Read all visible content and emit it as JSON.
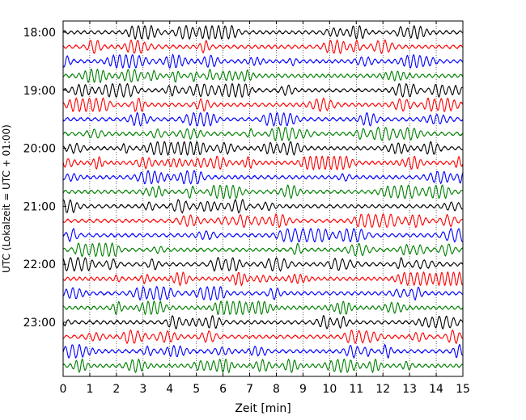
{
  "chart_data": {
    "type": "line",
    "subtype": "helicorder seismogram",
    "xlabel": "Zeit  [min]",
    "ylabel": "UTC (Lokalzeit = UTC + 01:00)",
    "x_ticks": [
      0,
      1,
      2,
      3,
      4,
      5,
      6,
      7,
      8,
      9,
      10,
      11,
      12,
      13,
      14,
      15
    ],
    "xlim": [
      0,
      15
    ],
    "x_gridlines": "dotted at every minute",
    "y_ticks": [
      "18:00",
      "19:00",
      "20:00",
      "21:00",
      "22:00",
      "23:00"
    ],
    "trace_minutes": 15,
    "traces_per_hour": 4,
    "trace_colors": [
      "#000000",
      "#ff0000",
      "#0000ff",
      "#008000"
    ],
    "traces": [
      {
        "start": "18:00",
        "color": "#000000"
      },
      {
        "start": "18:15",
        "color": "#ff0000"
      },
      {
        "start": "18:30",
        "color": "#0000ff"
      },
      {
        "start": "18:45",
        "color": "#008000"
      },
      {
        "start": "19:00",
        "color": "#000000"
      },
      {
        "start": "19:15",
        "color": "#ff0000"
      },
      {
        "start": "19:30",
        "color": "#0000ff"
      },
      {
        "start": "19:45",
        "color": "#008000"
      },
      {
        "start": "20:00",
        "color": "#000000"
      },
      {
        "start": "20:15",
        "color": "#ff0000"
      },
      {
        "start": "20:30",
        "color": "#0000ff"
      },
      {
        "start": "20:45",
        "color": "#008000"
      },
      {
        "start": "21:00",
        "color": "#000000"
      },
      {
        "start": "21:15",
        "color": "#ff0000"
      },
      {
        "start": "21:30",
        "color": "#0000ff"
      },
      {
        "start": "21:45",
        "color": "#008000"
      },
      {
        "start": "22:00",
        "color": "#000000"
      },
      {
        "start": "22:15",
        "color": "#ff0000"
      },
      {
        "start": "22:30",
        "color": "#0000ff"
      },
      {
        "start": "22:45",
        "color": "#008000"
      },
      {
        "start": "23:00",
        "color": "#000000"
      },
      {
        "start": "23:15",
        "color": "#ff0000"
      },
      {
        "start": "23:30",
        "color": "#0000ff"
      },
      {
        "start": "23:45",
        "color": "#008000"
      }
    ]
  }
}
